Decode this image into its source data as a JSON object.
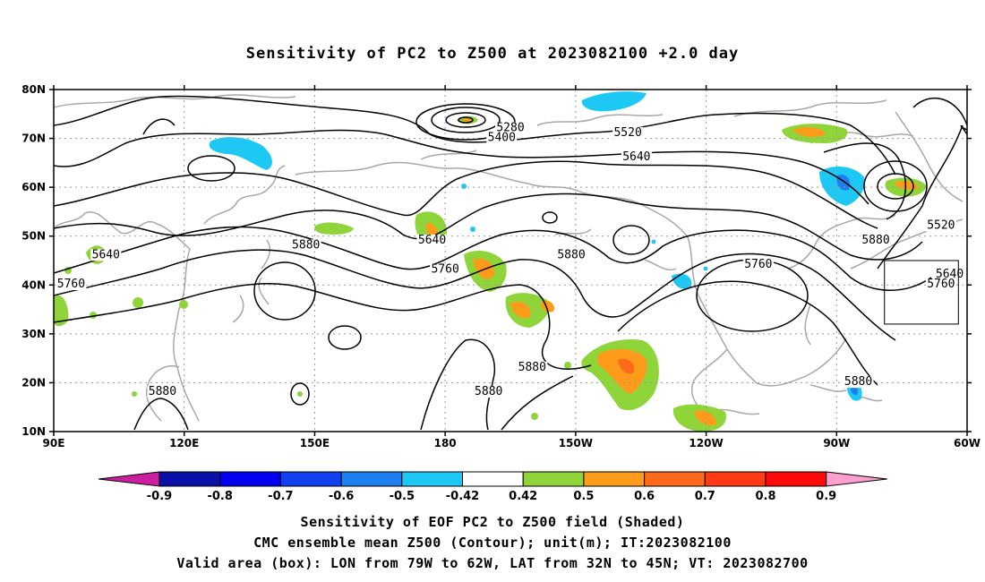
{
  "title": "Sensitivity of PC2 to Z500 at 2023082100 +2.0 day",
  "map": {
    "lon_range": [
      90,
      300
    ],
    "lat_range": [
      10,
      80
    ],
    "lat_ticks": [
      {
        "value": 80,
        "label": "80N"
      },
      {
        "value": 70,
        "label": "70N"
      },
      {
        "value": 60,
        "label": "60N"
      },
      {
        "value": 50,
        "label": "50N"
      },
      {
        "value": 40,
        "label": "40N"
      },
      {
        "value": 30,
        "label": "30N"
      },
      {
        "value": 20,
        "label": "20N"
      },
      {
        "value": 10,
        "label": "10N"
      }
    ],
    "lon_ticks": [
      {
        "value": 90,
        "label": "90E"
      },
      {
        "value": 120,
        "label": "120E"
      },
      {
        "value": 150,
        "label": "150E"
      },
      {
        "value": 180,
        "label": "180"
      },
      {
        "value": 210,
        "label": "150W"
      },
      {
        "value": 240,
        "label": "120W"
      },
      {
        "value": 270,
        "label": "90W"
      },
      {
        "value": 300,
        "label": "60W"
      }
    ],
    "contour_labels": [
      {
        "text": "5280",
        "lon": 195,
        "lat": 71.5
      },
      {
        "text": "5400",
        "lon": 193,
        "lat": 69.5
      },
      {
        "text": "5520",
        "lon": 222,
        "lat": 70.5
      },
      {
        "text": "5640",
        "lon": 224,
        "lat": 65.5
      },
      {
        "text": "5520",
        "lon": 294,
        "lat": 51.5
      },
      {
        "text": "5640",
        "lon": 296,
        "lat": 41.5
      },
      {
        "text": "5760",
        "lon": 294,
        "lat": 39.5
      },
      {
        "text": "5640",
        "lon": 102,
        "lat": 45.5
      },
      {
        "text": "5760",
        "lon": 94,
        "lat": 39.5
      },
      {
        "text": "5880",
        "lon": 148,
        "lat": 47.5
      },
      {
        "text": "5640",
        "lon": 177,
        "lat": 48.5
      },
      {
        "text": "5760",
        "lon": 180,
        "lat": 42.5
      },
      {
        "text": "5880",
        "lon": 209,
        "lat": 45.5
      },
      {
        "text": "5760",
        "lon": 252,
        "lat": 43.5
      },
      {
        "text": "5880",
        "lon": 279,
        "lat": 48.5
      },
      {
        "text": "5880",
        "lon": 200,
        "lat": 22.5
      },
      {
        "text": "5880",
        "lon": 190,
        "lat": 17.5
      },
      {
        "text": "5880",
        "lon": 115,
        "lat": 17.5
      },
      {
        "text": "5880",
        "lon": 275,
        "lat": 19.5
      }
    ],
    "valid_box": {
      "lon_min": 281,
      "lon_max": 298,
      "lat_min": 32,
      "lat_max": 45
    }
  },
  "colorbar": {
    "labels": [
      "-0.9",
      "-0.8",
      "-0.7",
      "-0.6",
      "-0.5",
      "-0.42",
      "0.42",
      "0.5",
      "0.6",
      "0.7",
      "0.8",
      "0.9"
    ],
    "colors": [
      "#cc1fa0",
      "#0a0fa8",
      "#0000ee",
      "#1040f0",
      "#1e80f0",
      "#1ec8f5",
      "#ffffff",
      "#8fd53a",
      "#ff9b1a",
      "#ff6a1a",
      "#ff3a14",
      "#ff0a0a",
      "#ff9fd0"
    ]
  },
  "captions": {
    "line1": "Sensitivity of EOF PC2 to Z500 field (Shaded)",
    "line2": "CMC ensemble mean Z500 (Contour); unit(m); IT:2023082100",
    "line3": "Valid area (box): LON from 79W to 62W, LAT from 32N to 45N; VT: 2023082700"
  }
}
